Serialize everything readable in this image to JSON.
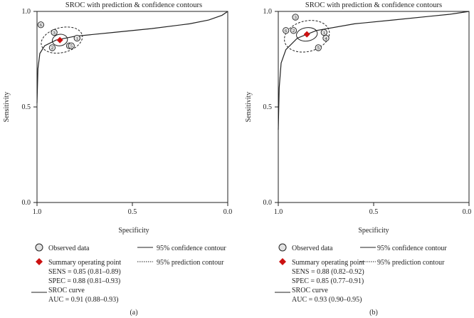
{
  "chart_data": [
    {
      "type": "scatter",
      "panel_label": "(a)",
      "title": "SROC with prediction & confidence contours",
      "xlabel": "Specificity",
      "ylabel": "Sensitivity",
      "xlim": [
        1.0,
        0.0
      ],
      "ylim": [
        0.0,
        1.0
      ],
      "x_ticks": [
        "1.0",
        "0.5",
        "0.0"
      ],
      "y_ticks": [
        "0.0",
        "0.5",
        "1.0"
      ],
      "points": [
        {
          "label": "6",
          "specificity": 0.98,
          "sensitivity": 0.93
        },
        {
          "label": "3",
          "specificity": 0.91,
          "sensitivity": 0.89
        },
        {
          "label": "2",
          "specificity": 0.92,
          "sensitivity": 0.81
        },
        {
          "label": "1",
          "specificity": 0.79,
          "sensitivity": 0.86
        },
        {
          "label": "4",
          "specificity": 0.83,
          "sensitivity": 0.82
        },
        {
          "label": "5",
          "specificity": 0.82,
          "sensitivity": 0.82
        }
      ],
      "summary": {
        "specificity": 0.88,
        "sensitivity": 0.85
      },
      "sroc_curve": [
        [
          1.0,
          0.52
        ],
        [
          0.995,
          0.7
        ],
        [
          0.985,
          0.78
        ],
        [
          0.96,
          0.82
        ],
        [
          0.9,
          0.85
        ],
        [
          0.8,
          0.87
        ],
        [
          0.6,
          0.89
        ],
        [
          0.4,
          0.91
        ],
        [
          0.2,
          0.935
        ],
        [
          0.1,
          0.955
        ],
        [
          0.03,
          0.98
        ],
        [
          0.0,
          1.0
        ]
      ],
      "confidence_contour": {
        "center_spec": 0.88,
        "center_sens": 0.85,
        "r_spec": 0.04,
        "r_sens": 0.03,
        "rotation": 10
      },
      "prediction_contour": {
        "center_spec": 0.87,
        "center_sens": 0.85,
        "r_spec": 0.11,
        "r_sens": 0.065,
        "rotation": 14
      },
      "legend": {
        "observed": "Observed data",
        "summary": "Summary operating point",
        "sens": "SENS = 0.85 (0.81–0.89)",
        "spec": "SPEC = 0.88 (0.81–0.93)",
        "sroc": "SROC curve",
        "auc": "AUC = 0.91 (0.88–0.93)",
        "conf": "95% confidence contour",
        "pred": "95% prediction contour"
      }
    },
    {
      "type": "scatter",
      "panel_label": "(b)",
      "title": "SROC with prediction & confidence contours",
      "xlabel": "Specificity",
      "ylabel": "Sensitivity",
      "xlim": [
        1.0,
        0.0
      ],
      "ylim": [
        0.0,
        1.0
      ],
      "x_ticks": [
        "1.0",
        "0.5",
        "0.0"
      ],
      "y_ticks": [
        "0.0",
        "0.5",
        "1.0"
      ],
      "points": [
        {
          "label": "3",
          "specificity": 0.91,
          "sensitivity": 0.97
        },
        {
          "label": "6",
          "specificity": 0.96,
          "sensitivity": 0.9
        },
        {
          "label": "2",
          "specificity": 0.92,
          "sensitivity": 0.9
        },
        {
          "label": "1",
          "specificity": 0.76,
          "sensitivity": 0.89
        },
        {
          "label": "4",
          "specificity": 0.75,
          "sensitivity": 0.86
        },
        {
          "label": "5",
          "specificity": 0.79,
          "sensitivity": 0.81
        }
      ],
      "summary": {
        "specificity": 0.85,
        "sensitivity": 0.88
      },
      "sroc_curve": [
        [
          1.0,
          0.38
        ],
        [
          0.995,
          0.6
        ],
        [
          0.985,
          0.73
        ],
        [
          0.96,
          0.8
        ],
        [
          0.9,
          0.86
        ],
        [
          0.8,
          0.9
        ],
        [
          0.6,
          0.935
        ],
        [
          0.4,
          0.955
        ],
        [
          0.2,
          0.975
        ],
        [
          0.1,
          0.985
        ],
        [
          0.0,
          1.0
        ]
      ],
      "confidence_contour": {
        "center_spec": 0.85,
        "center_sens": 0.88,
        "r_spec": 0.055,
        "r_sens": 0.035,
        "rotation": 8
      },
      "prediction_contour": {
        "center_spec": 0.85,
        "center_sens": 0.87,
        "r_spec": 0.12,
        "r_sens": 0.08,
        "rotation": 14
      },
      "legend": {
        "observed": "Observed data",
        "summary": "Summary operating point",
        "sens": "SENS = 0.88 (0.82–0.92)",
        "spec": "SPEC = 0.85 (0.77–0.91)",
        "sroc": "SROC curve",
        "auc": "AUC = 0.93 (0.90–0.95)",
        "conf": "95% confidence contour",
        "pred": "95% prediction contour"
      }
    }
  ],
  "colors": {
    "summary": "#cc1111",
    "point_fill": "#e2e2e2",
    "ink": "#222222"
  }
}
